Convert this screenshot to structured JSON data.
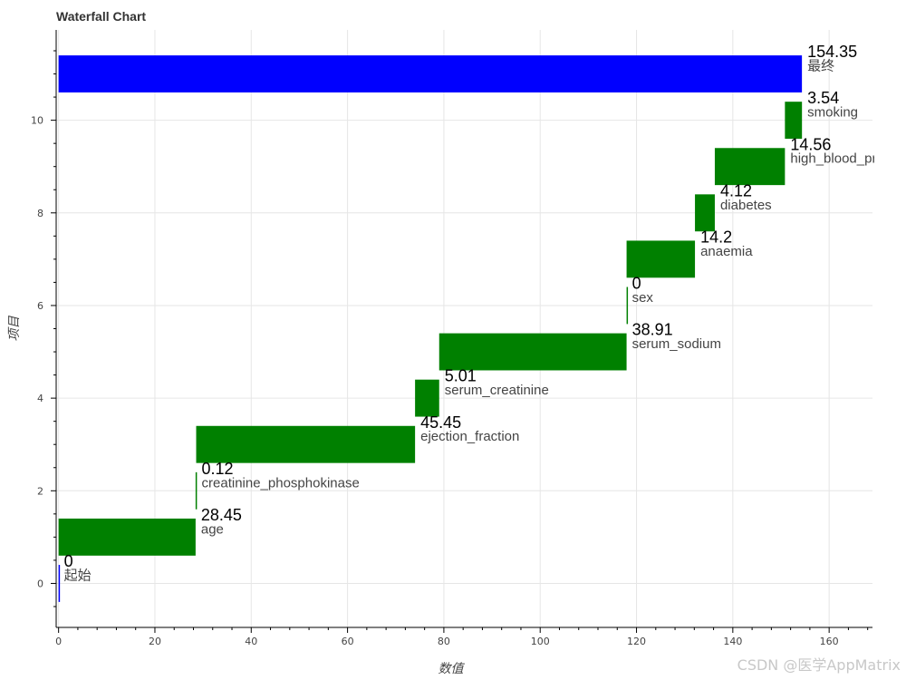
{
  "chart_data": {
    "type": "bar",
    "orientation": "horizontal-waterfall",
    "title": "Waterfall Chart",
    "xlabel": "数值",
    "ylabel": "项目",
    "xlim": [
      -0.5,
      169
    ],
    "ylim": [
      -0.95,
      11.95
    ],
    "xticks": [
      0,
      20,
      40,
      60,
      80,
      100,
      120,
      140,
      160
    ],
    "yticks": [
      0,
      2,
      4,
      6,
      8,
      10
    ],
    "grid": true,
    "colors": {
      "total": "#0000ff",
      "step": "#008000"
    },
    "items": [
      {
        "name": "起始",
        "value": 0,
        "value_label": "0",
        "start": 0,
        "end": 0,
        "kind": "total"
      },
      {
        "name": "age",
        "value": 28.45,
        "value_label": "28.45",
        "start": 0,
        "end": 28.45,
        "kind": "step"
      },
      {
        "name": "creatinine_phosphokinase",
        "value": 0.12,
        "value_label": "0.12",
        "start": 28.45,
        "end": 28.57,
        "kind": "step"
      },
      {
        "name": "ejection_fraction",
        "value": 45.45,
        "value_label": "45.45",
        "start": 28.57,
        "end": 74.02,
        "kind": "step"
      },
      {
        "name": "serum_creatinine",
        "value": 5.01,
        "value_label": "5.01",
        "start": 74.02,
        "end": 79.03,
        "kind": "step"
      },
      {
        "name": "serum_sodium",
        "value": 38.91,
        "value_label": "38.91",
        "start": 79.03,
        "end": 117.94,
        "kind": "step"
      },
      {
        "name": "sex",
        "value": 0,
        "value_label": "0",
        "start": 117.94,
        "end": 117.94,
        "kind": "step"
      },
      {
        "name": "anaemia",
        "value": 14.2,
        "value_label": "14.2",
        "start": 117.94,
        "end": 132.14,
        "kind": "step"
      },
      {
        "name": "diabetes",
        "value": 4.12,
        "value_label": "4.12",
        "start": 132.14,
        "end": 136.26,
        "kind": "step"
      },
      {
        "name": "high_blood_pressure",
        "value": 14.56,
        "value_label": "14.56",
        "start": 136.26,
        "end": 150.82,
        "kind": "step"
      },
      {
        "name": "smoking",
        "value": 3.54,
        "value_label": "3.54",
        "start": 150.82,
        "end": 154.36,
        "kind": "step"
      },
      {
        "name": "最终",
        "value": 154.35,
        "value_label": "154.35",
        "start": 0,
        "end": 154.35,
        "kind": "total"
      }
    ]
  },
  "watermark": "CSDN @医学AppMatrix"
}
